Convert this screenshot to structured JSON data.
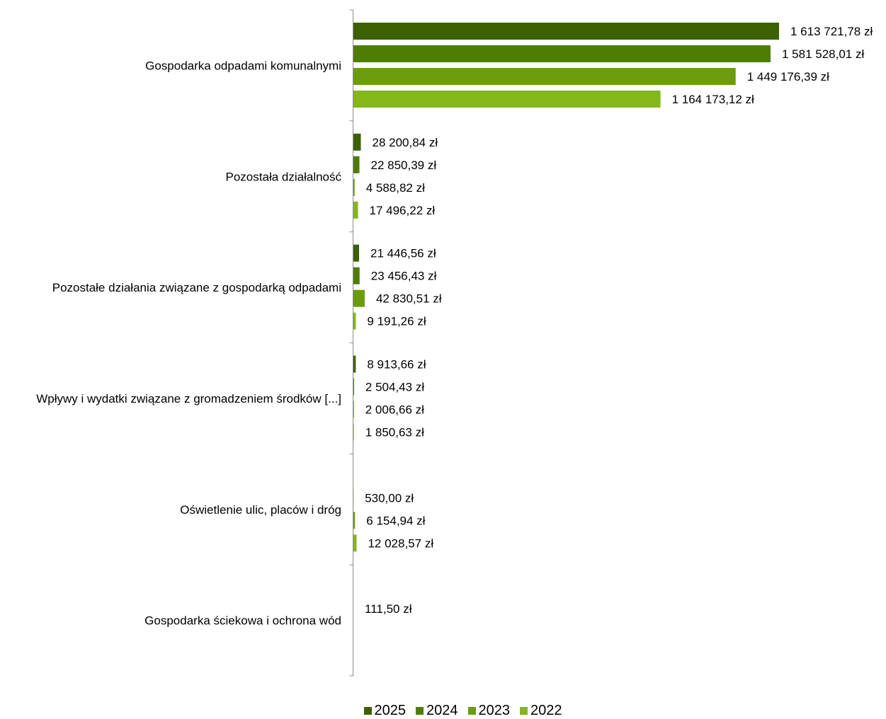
{
  "chart_data": {
    "type": "bar",
    "orientation": "horizontal",
    "categories": [
      "Gospodarka odpadami komunalnymi",
      "Pozostała działalność",
      "Pozostałe działania związane z gospodarką odpadami",
      "Wpływy i wydatki związane z gromadzeniem środków [...]",
      "Oświetlenie ulic, placów i dróg",
      "Gospodarka ściekowa i ochrona wód"
    ],
    "series": [
      {
        "name": "2025",
        "color": "#3b6100",
        "values": [
          1613721.78,
          28200.84,
          21446.56,
          8913.66,
          null,
          null
        ],
        "labels": [
          "1 613 721,78 zł",
          "28 200,84 zł",
          "21 446,56 zł",
          "8 913,66 zł",
          "",
          ""
        ]
      },
      {
        "name": "2024",
        "color": "#4e7d06",
        "values": [
          1581528.01,
          22850.39,
          23456.43,
          2504.43,
          530.0,
          111.5
        ],
        "labels": [
          "1 581 528,01 zł",
          "22 850,39 zł",
          "23 456,43 zł",
          "2 504,43 zł",
          "530,00 zł",
          "111,50 zł"
        ]
      },
      {
        "name": "2023",
        "color": "#6a9c0e",
        "values": [
          1449176.39,
          4588.82,
          42830.51,
          2006.66,
          6154.94,
          null
        ],
        "labels": [
          "1 449 176,39 zł",
          "4 588,82 zł",
          "42 830,51 zł",
          "2 006,66 zł",
          "6 154,94 zł",
          ""
        ]
      },
      {
        "name": "2022",
        "color": "#83b71a",
        "values": [
          1164173.12,
          17496.22,
          9191.26,
          1850.63,
          12028.57,
          null
        ],
        "labels": [
          "1 164 173,12 zł",
          "17 496,22 zł",
          "9 191,26 zł",
          "1 850,63 zł",
          "12 028,57 zł",
          ""
        ]
      }
    ],
    "xlim": [
      0,
      1613721.78
    ],
    "grid": false,
    "legend_position": "bottom"
  }
}
